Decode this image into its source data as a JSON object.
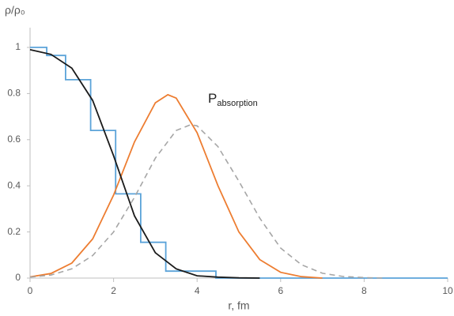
{
  "chart_data": {
    "type": "line",
    "y_label": "ρ/ρ₀",
    "x_label": "r, fm",
    "annotation": {
      "text": "P",
      "subscript": "absorption"
    },
    "xlim": [
      0,
      10
    ],
    "xticks": [
      0,
      2,
      4,
      6,
      8,
      10
    ],
    "ylim": [
      0,
      1
    ],
    "yticks": [
      0,
      0.2,
      0.4,
      0.6,
      0.8,
      1
    ],
    "grid": false,
    "series": [
      {
        "color": "#5ba3d9",
        "dash": false,
        "x": [
          0,
          0.4,
          0.4,
          0.85,
          0.85,
          1.45,
          1.45,
          2.05,
          2.05,
          2.65,
          2.65,
          3.25,
          3.25,
          4.45,
          4.45,
          10
        ],
        "values": [
          1,
          1,
          0.965,
          0.965,
          0.86,
          0.86,
          0.64,
          0.64,
          0.365,
          0.365,
          0.155,
          0.155,
          0.03,
          0.03,
          0,
          0
        ]
      },
      {
        "color": "#ed7d31",
        "dash": false,
        "x": [
          0,
          0.5,
          1,
          1.5,
          2,
          2.5,
          3,
          3.3,
          3.5,
          4,
          4.5,
          5,
          5.5,
          6,
          6.5,
          7
        ],
        "values": [
          0.005,
          0.02,
          0.065,
          0.17,
          0.36,
          0.59,
          0.76,
          0.795,
          0.78,
          0.63,
          0.4,
          0.2,
          0.08,
          0.025,
          0.006,
          0
        ]
      },
      {
        "color": "#a6a6a6",
        "dash": true,
        "x": [
          0,
          0.5,
          1,
          1.5,
          2,
          2.5,
          3,
          3.5,
          3.85,
          4,
          4.5,
          5,
          5.5,
          6,
          6.5,
          7,
          7.5,
          8,
          8.5
        ],
        "values": [
          0.004,
          0.013,
          0.04,
          0.098,
          0.2,
          0.35,
          0.52,
          0.64,
          0.665,
          0.66,
          0.57,
          0.42,
          0.26,
          0.13,
          0.058,
          0.021,
          0.007,
          0.002,
          0
        ]
      },
      {
        "color": "#1a1a1a",
        "dash": false,
        "x": [
          0,
          0.5,
          1,
          1.5,
          2,
          2.5,
          3,
          3.5,
          4,
          4.5,
          5,
          5.5
        ],
        "values": [
          0.99,
          0.97,
          0.91,
          0.77,
          0.53,
          0.27,
          0.11,
          0.04,
          0.01,
          0.004,
          0.001,
          0
        ]
      }
    ]
  }
}
